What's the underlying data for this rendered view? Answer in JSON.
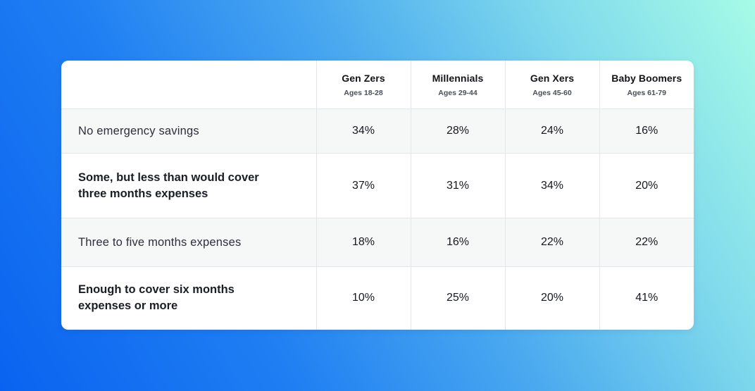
{
  "chart_data": {
    "type": "table",
    "columns": [
      {
        "name": "Gen Zers",
        "ages": "Ages 18-28"
      },
      {
        "name": "Millennials",
        "ages": "Ages 29-44"
      },
      {
        "name": "Gen Xers",
        "ages": "Ages 45-60"
      },
      {
        "name": "Baby Boomers",
        "ages": "Ages 61-79"
      }
    ],
    "rows": [
      {
        "label": "No emergency savings",
        "values": [
          "34%",
          "28%",
          "24%",
          "16%"
        ]
      },
      {
        "label": "Some, but less than would cover three months expenses",
        "values": [
          "37%",
          "31%",
          "34%",
          "20%"
        ]
      },
      {
        "label": "Three to five months expenses",
        "values": [
          "18%",
          "16%",
          "22%",
          "22%"
        ]
      },
      {
        "label": "Enough to cover six months expenses or more",
        "values": [
          "10%",
          "25%",
          "20%",
          "41%"
        ]
      }
    ]
  },
  "colors": {
    "card_background": "#ffffff",
    "shaded_row": "#f6f8f8",
    "divider": "#e3e6ea",
    "gradient_start": "#0a63f0",
    "gradient_end": "#a6fbe6"
  }
}
